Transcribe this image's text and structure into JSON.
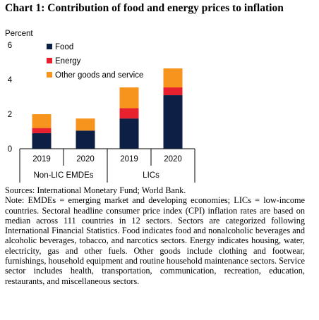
{
  "title": "Chart 1: Contribution of food and energy prices to inflation",
  "sources": "Sources: International Monetary Fund; World Bank.",
  "note": "Note: EMDEs = emerging market and developing economies; LICs = low-income countries. Sectoral headline consumer price index (CPI) inflation rates are based on median across 111 countries in 12 sectors. Sectors are categorized following International Financial Statistics. Food indicates food and nonalcoholic beverages and alcoholic beverages, tobacco, and narcotics sectors. Energy indicates housing, water, electricity, gas and other fuels. Other goods include clothing and footwear, furnishings, household equipment and routine household maintenance sectors. Service sector includes health, transportation, communication, recreation, education, restaurants, and miscellaneous sectors.",
  "chart_data": {
    "type": "bar",
    "stacked": true,
    "ylabel": "Percent",
    "ylim": [
      0,
      6
    ],
    "yticks": [
      0,
      2,
      4,
      6
    ],
    "categories": [
      "2019",
      "2020",
      "2019",
      "2020"
    ],
    "groups": [
      {
        "label": "Non-LIC EMDEs",
        "categories": [
          0,
          1
        ]
      },
      {
        "label": "LICs",
        "categories": [
          2,
          3
        ]
      }
    ],
    "series": [
      {
        "name": "Food",
        "color": "#0d1f45",
        "values": [
          0.9,
          1.05,
          1.75,
          3.1
        ]
      },
      {
        "name": "Energy",
        "color": "#e8212f",
        "values": [
          0.3,
          0.0,
          0.6,
          0.45
        ]
      },
      {
        "name": "Other goods and service",
        "color": "#f7941d",
        "values": [
          0.8,
          0.7,
          1.2,
          1.1
        ]
      }
    ],
    "legend_position": "top-right",
    "grid": false
  }
}
